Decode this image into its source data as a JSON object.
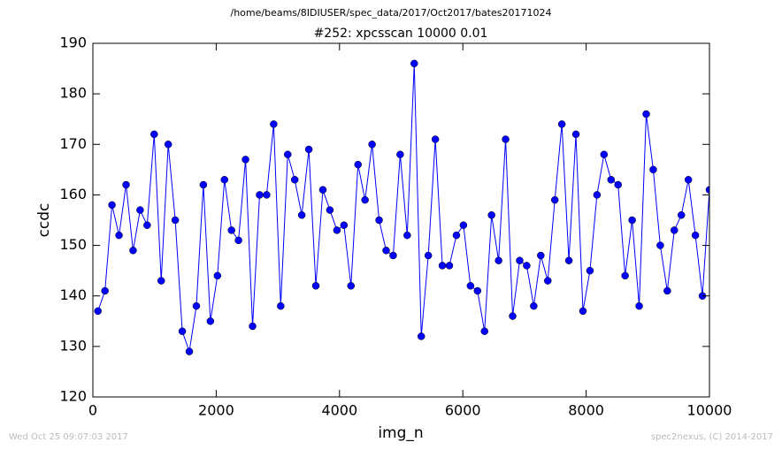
{
  "chart_data": {
    "type": "line",
    "suptitle": "/home/beams/8IDIUSER/spec_data/2017/Oct2017/bates20171024",
    "title": "#252: xpcsscan 10000 0.01",
    "x_label": "img_n",
    "y_label": "ccdc",
    "timestamp": "Wed Oct 25 09:07:03 2017",
    "credit": "spec2nexus, (C) 2014-2017",
    "x": [
      82,
      196,
      310,
      424,
      538,
      652,
      766,
      880,
      994,
      1108,
      1222,
      1336,
      1450,
      1564,
      1678,
      1792,
      1906,
      2020,
      2134,
      2248,
      2362,
      2476,
      2590,
      2704,
      2818,
      2932,
      3046,
      3160,
      3274,
      3388,
      3502,
      3616,
      3730,
      3844,
      3958,
      4072,
      4186,
      4300,
      4414,
      4528,
      4642,
      4756,
      4870,
      4984,
      5098,
      5212,
      5326,
      5440,
      5554,
      5668,
      5782,
      5896,
      6010,
      6124,
      6238,
      6352,
      6466,
      6580,
      6694,
      6808,
      6922,
      7036,
      7150,
      7264,
      7378,
      7492,
      7606,
      7720,
      7834,
      7948,
      8062,
      8176,
      8290,
      8404,
      8518,
      8632,
      8746,
      8860,
      8974,
      9088,
      9202,
      9316,
      9430,
      9544,
      9658,
      9772,
      9886,
      10000
    ],
    "series": [
      {
        "color": "#0000ff",
        "values": [
          137,
          141,
          158,
          152,
          162,
          149,
          157,
          154,
          172,
          143,
          170,
          155,
          133,
          129,
          138,
          162,
          135,
          144,
          163,
          153,
          151,
          167,
          134,
          160,
          160,
          174,
          138,
          168,
          163,
          156,
          169,
          142,
          161,
          157,
          153,
          154,
          142,
          166,
          159,
          170,
          155,
          149,
          148,
          168,
          152,
          186,
          132,
          148,
          171,
          146,
          146,
          152,
          154,
          142,
          141,
          133,
          156,
          147,
          171,
          136,
          147,
          146,
          138,
          148,
          143,
          159,
          174,
          147,
          172,
          137,
          145,
          160,
          168,
          163,
          162,
          144,
          155,
          138,
          176,
          165,
          150,
          141,
          153,
          156,
          163,
          152,
          140,
          161
        ]
      }
    ],
    "xlim": [
      0,
      10000
    ],
    "xticks": [
      0,
      2000,
      4000,
      6000,
      8000,
      10000
    ],
    "ylim": [
      120,
      190
    ],
    "yticks": [
      120,
      130,
      140,
      150,
      160,
      170,
      180,
      190
    ]
  }
}
